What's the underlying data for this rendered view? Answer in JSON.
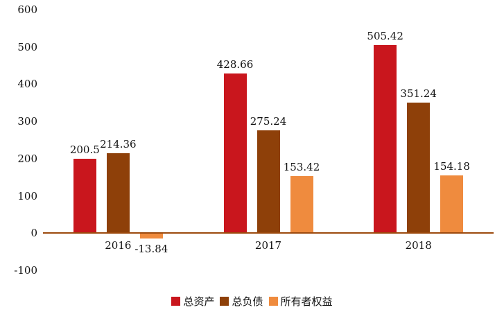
{
  "chart_data": {
    "type": "bar",
    "title": "",
    "categories": [
      "2016",
      "2017",
      "2018"
    ],
    "series": [
      {
        "name": "总资产",
        "color": "#C9161D",
        "values": [
          200.5,
          428.66,
          505.42
        ],
        "labels": [
          "200.5",
          "428.66",
          "505.42"
        ]
      },
      {
        "name": "总负债",
        "color": "#8E4009",
        "values": [
          214.36,
          275.24,
          351.24
        ],
        "labels": [
          "214.36",
          "275.24",
          "351.24"
        ]
      },
      {
        "name": "所有者权益",
        "color": "#EF8B3E",
        "values": [
          -13.84,
          153.42,
          154.18
        ],
        "labels": [
          "-13.84",
          "153.42",
          "154.18"
        ]
      }
    ],
    "y_axis": {
      "min": -100,
      "max": 600,
      "step": 100,
      "ticks": [
        "-100",
        "0",
        "100",
        "200",
        "300",
        "400",
        "500",
        "600"
      ]
    },
    "grid": false,
    "legend_position": "bottom",
    "axis_color": "#9C4A0E",
    "background": "#FFFFFF",
    "text_color": "#111111"
  }
}
